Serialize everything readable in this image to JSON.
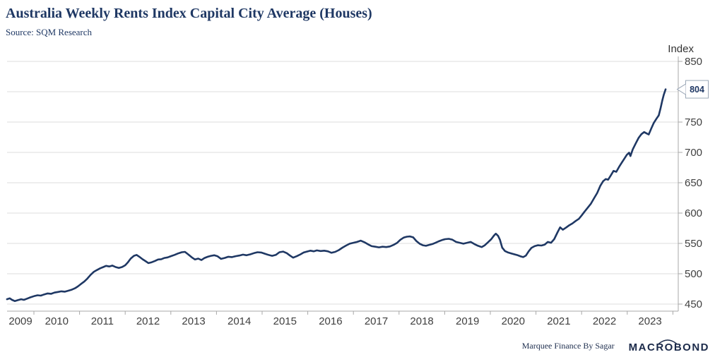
{
  "header": {
    "title": "Australia Weekly Rents Index Capital City Average (Houses)",
    "source": "Source: SQM Research"
  },
  "footer": {
    "branding": "Marquee Finance By Sagar",
    "logo": "MACROBOND"
  },
  "colors": {
    "navy": "#1f3864",
    "line": "#1f3864",
    "grid": "#dcdcdc",
    "axis": "#a8a8a8",
    "tick_text": "#404040",
    "callout_border": "#9aa6b6",
    "callout_bg": "#ffffff"
  },
  "chart_data": {
    "type": "line",
    "title": "Australia Weekly Rents Index Capital City Average (Houses)",
    "y_axis": {
      "label": "Index",
      "range": [
        450,
        850
      ],
      "gridline_step": 50,
      "visible_tick_labels": [
        850,
        750,
        700,
        650,
        600,
        550,
        500,
        450
      ],
      "grid_on": true,
      "side": "right"
    },
    "x_axis": {
      "year_labels": [
        "2009",
        "2010",
        "2011",
        "2012",
        "2013",
        "2014",
        "2015",
        "2016",
        "2017",
        "2018",
        "2019",
        "2020",
        "2021",
        "2022",
        "2023"
      ],
      "range_years": [
        2009.41,
        2023.95
      ]
    },
    "end_label": {
      "value": "804"
    },
    "series": [
      {
        "name": "Weekly Rents Index (Houses, capital city average)",
        "points": [
          [
            2009.41,
            458
          ],
          [
            2009.47,
            459.5
          ],
          [
            2009.52,
            457
          ],
          [
            2009.58,
            455
          ],
          [
            2009.65,
            456.5
          ],
          [
            2009.72,
            458
          ],
          [
            2009.78,
            457
          ],
          [
            2009.85,
            459
          ],
          [
            2009.92,
            461
          ],
          [
            2010.0,
            463
          ],
          [
            2010.08,
            464.5
          ],
          [
            2010.15,
            464
          ],
          [
            2010.23,
            466
          ],
          [
            2010.3,
            467.5
          ],
          [
            2010.38,
            467
          ],
          [
            2010.45,
            469
          ],
          [
            2010.53,
            470
          ],
          [
            2010.6,
            471
          ],
          [
            2010.68,
            470.5
          ],
          [
            2010.75,
            472
          ],
          [
            2010.82,
            473.5
          ],
          [
            2010.9,
            476
          ],
          [
            2010.96,
            479
          ],
          [
            2011.03,
            483
          ],
          [
            2011.1,
            487
          ],
          [
            2011.17,
            492
          ],
          [
            2011.24,
            498
          ],
          [
            2011.31,
            503
          ],
          [
            2011.38,
            506
          ],
          [
            2011.45,
            509
          ],
          [
            2011.52,
            511
          ],
          [
            2011.58,
            513
          ],
          [
            2011.65,
            512
          ],
          [
            2011.72,
            513.5
          ],
          [
            2011.79,
            511
          ],
          [
            2011.86,
            509.5
          ],
          [
            2011.93,
            511
          ],
          [
            2012.0,
            514
          ],
          [
            2012.06,
            519
          ],
          [
            2012.12,
            525
          ],
          [
            2012.19,
            529.5
          ],
          [
            2012.25,
            531
          ],
          [
            2012.31,
            528
          ],
          [
            2012.38,
            524
          ],
          [
            2012.44,
            521
          ],
          [
            2012.51,
            517.5
          ],
          [
            2012.58,
            519
          ],
          [
            2012.65,
            521
          ],
          [
            2012.72,
            523.5
          ],
          [
            2012.79,
            524
          ],
          [
            2012.86,
            526
          ],
          [
            2012.93,
            527
          ],
          [
            2013.0,
            529
          ],
          [
            2013.08,
            531
          ],
          [
            2013.16,
            533.5
          ],
          [
            2013.24,
            535.5
          ],
          [
            2013.31,
            536
          ],
          [
            2013.38,
            532
          ],
          [
            2013.46,
            527
          ],
          [
            2013.53,
            523.5
          ],
          [
            2013.6,
            525
          ],
          [
            2013.67,
            522.5
          ],
          [
            2013.74,
            526
          ],
          [
            2013.81,
            528
          ],
          [
            2013.88,
            529.5
          ],
          [
            2013.95,
            530.5
          ],
          [
            2014.02,
            529
          ],
          [
            2014.1,
            524.5
          ],
          [
            2014.18,
            526
          ],
          [
            2014.26,
            528
          ],
          [
            2014.34,
            527.5
          ],
          [
            2014.42,
            529
          ],
          [
            2014.5,
            530
          ],
          [
            2014.58,
            531.5
          ],
          [
            2014.66,
            530.5
          ],
          [
            2014.74,
            532
          ],
          [
            2014.82,
            534
          ],
          [
            2014.9,
            535.5
          ],
          [
            2014.98,
            535
          ],
          [
            2015.06,
            533
          ],
          [
            2015.14,
            531
          ],
          [
            2015.22,
            529.5
          ],
          [
            2015.3,
            531
          ],
          [
            2015.38,
            535.5
          ],
          [
            2015.46,
            536.5
          ],
          [
            2015.54,
            534
          ],
          [
            2015.61,
            530
          ],
          [
            2015.68,
            526.5
          ],
          [
            2015.76,
            529
          ],
          [
            2015.84,
            532
          ],
          [
            2015.91,
            535
          ],
          [
            2015.98,
            536.5
          ],
          [
            2016.06,
            538
          ],
          [
            2016.13,
            537
          ],
          [
            2016.2,
            538.5
          ],
          [
            2016.28,
            537.5
          ],
          [
            2016.36,
            538
          ],
          [
            2016.44,
            537
          ],
          [
            2016.52,
            534.5
          ],
          [
            2016.6,
            536
          ],
          [
            2016.68,
            539
          ],
          [
            2016.76,
            543
          ],
          [
            2016.84,
            546.5
          ],
          [
            2016.92,
            549.5
          ],
          [
            2017.0,
            551
          ],
          [
            2017.08,
            552.5
          ],
          [
            2017.16,
            554.5
          ],
          [
            2017.24,
            552
          ],
          [
            2017.32,
            548.5
          ],
          [
            2017.4,
            545.5
          ],
          [
            2017.48,
            544.5
          ],
          [
            2017.56,
            543.5
          ],
          [
            2017.64,
            544.5
          ],
          [
            2017.72,
            544
          ],
          [
            2017.8,
            545
          ],
          [
            2017.88,
            547.5
          ],
          [
            2017.96,
            551
          ],
          [
            2018.03,
            556
          ],
          [
            2018.1,
            559.5
          ],
          [
            2018.17,
            561
          ],
          [
            2018.24,
            561.5
          ],
          [
            2018.31,
            560
          ],
          [
            2018.38,
            554
          ],
          [
            2018.45,
            549.5
          ],
          [
            2018.52,
            547
          ],
          [
            2018.59,
            546
          ],
          [
            2018.66,
            547.5
          ],
          [
            2018.73,
            549
          ],
          [
            2018.8,
            551
          ],
          [
            2018.87,
            553.5
          ],
          [
            2018.94,
            555.5
          ],
          [
            2019.01,
            557
          ],
          [
            2019.09,
            557.5
          ],
          [
            2019.17,
            556
          ],
          [
            2019.25,
            552.5
          ],
          [
            2019.33,
            551
          ],
          [
            2019.41,
            549.5
          ],
          [
            2019.49,
            551
          ],
          [
            2019.57,
            552.5
          ],
          [
            2019.65,
            549
          ],
          [
            2019.73,
            546
          ],
          [
            2019.81,
            544
          ],
          [
            2019.88,
            547
          ],
          [
            2019.95,
            552
          ],
          [
            2020.02,
            557
          ],
          [
            2020.08,
            563
          ],
          [
            2020.12,
            566
          ],
          [
            2020.17,
            562.5
          ],
          [
            2020.21,
            556
          ],
          [
            2020.26,
            543
          ],
          [
            2020.32,
            537.5
          ],
          [
            2020.39,
            535
          ],
          [
            2020.46,
            533.5
          ],
          [
            2020.53,
            532
          ],
          [
            2020.6,
            530.5
          ],
          [
            2020.67,
            528.5
          ],
          [
            2020.72,
            527.5
          ],
          [
            2020.78,
            530
          ],
          [
            2020.84,
            537
          ],
          [
            2020.9,
            542.5
          ],
          [
            2020.97,
            545.5
          ],
          [
            2021.04,
            547
          ],
          [
            2021.12,
            546.5
          ],
          [
            2021.19,
            548
          ],
          [
            2021.26,
            552.5
          ],
          [
            2021.33,
            551
          ],
          [
            2021.4,
            557
          ],
          [
            2021.47,
            568
          ],
          [
            2021.53,
            576.5
          ],
          [
            2021.59,
            572.5
          ],
          [
            2021.66,
            576
          ],
          [
            2021.73,
            580
          ],
          [
            2021.8,
            583
          ],
          [
            2021.87,
            587
          ],
          [
            2021.94,
            590.5
          ],
          [
            2022.0,
            596
          ],
          [
            2022.06,
            602
          ],
          [
            2022.13,
            608.5
          ],
          [
            2022.2,
            615
          ],
          [
            2022.27,
            624
          ],
          [
            2022.34,
            633
          ],
          [
            2022.41,
            645
          ],
          [
            2022.47,
            652.5
          ],
          [
            2022.53,
            656
          ],
          [
            2022.58,
            655
          ],
          [
            2022.64,
            662
          ],
          [
            2022.7,
            669.5
          ],
          [
            2022.76,
            668
          ],
          [
            2022.82,
            676
          ],
          [
            2022.88,
            683
          ],
          [
            2022.94,
            690
          ],
          [
            2022.99,
            696
          ],
          [
            2023.04,
            699.5
          ],
          [
            2023.07,
            694
          ],
          [
            2023.12,
            705
          ],
          [
            2023.19,
            715.5
          ],
          [
            2023.25,
            724
          ],
          [
            2023.31,
            730
          ],
          [
            2023.37,
            733.5
          ],
          [
            2023.43,
            731
          ],
          [
            2023.47,
            729.5
          ],
          [
            2023.53,
            740
          ],
          [
            2023.58,
            748.5
          ],
          [
            2023.64,
            755.5
          ],
          [
            2023.69,
            761
          ],
          [
            2023.73,
            773
          ],
          [
            2023.77,
            786
          ],
          [
            2023.8,
            795
          ],
          [
            2023.84,
            804
          ]
        ]
      }
    ]
  }
}
